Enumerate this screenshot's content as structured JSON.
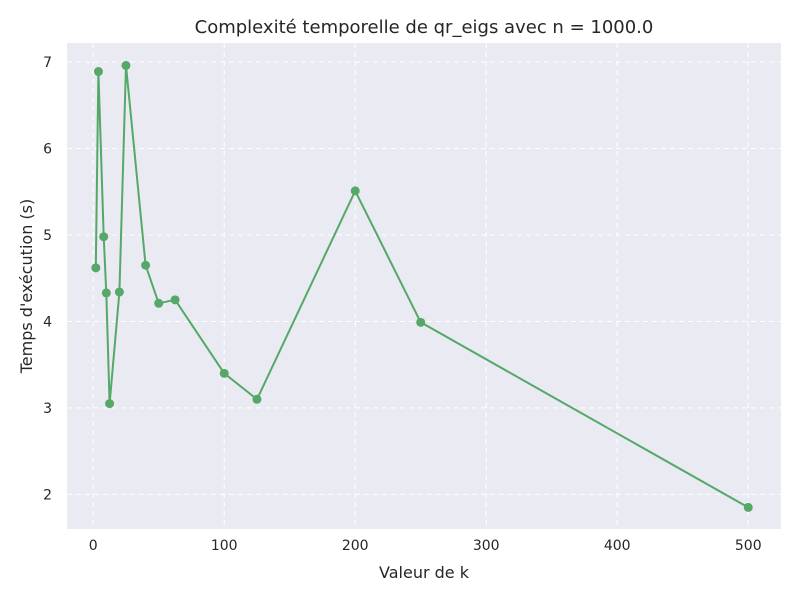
{
  "chart_data": {
    "type": "line",
    "title": "Complexité temporelle de qr_eigs avec n = 1000.0",
    "xlabel": "Valeur de k",
    "ylabel": "Temps d'exécution (s)",
    "xlim": [
      -20,
      525
    ],
    "ylim": [
      1.6,
      7.22
    ],
    "xticks": [
      0,
      100,
      200,
      300,
      400,
      500
    ],
    "yticks": [
      2,
      3,
      4,
      5,
      6,
      7
    ],
    "grid": true,
    "series": [
      {
        "color": "#55a868",
        "marker": "circle",
        "x": [
          2,
          4,
          8,
          10,
          12.5,
          20,
          25,
          40,
          50,
          62.5,
          100,
          125,
          200,
          250,
          500
        ],
        "y": [
          4.62,
          6.89,
          4.98,
          4.33,
          3.05,
          4.34,
          6.96,
          4.65,
          4.21,
          4.25,
          3.4,
          3.1,
          5.51,
          3.99,
          1.85
        ]
      }
    ]
  },
  "style": {
    "plot_background": "#eaeaf2",
    "grid_color": "#ffffff",
    "text_color": "#262626"
  }
}
